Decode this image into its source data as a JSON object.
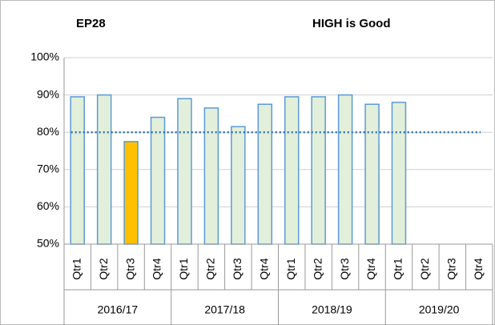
{
  "chart_data": {
    "type": "bar",
    "title": "EP28",
    "subtitle": "HIGH is Good",
    "categories": [
      "Qtr1",
      "Qtr2",
      "Qtr3",
      "Qtr4",
      "Qtr1",
      "Qtr2",
      "Qtr3",
      "Qtr4",
      "Qtr1",
      "Qtr2",
      "Qtr3",
      "Qtr4",
      "Qtr1",
      "Qtr2",
      "Qtr3",
      "Qtr4"
    ],
    "groups": [
      "2016/17",
      "2017/18",
      "2018/19",
      "2019/20"
    ],
    "values": [
      89.5,
      90,
      77.5,
      84,
      89,
      86.5,
      81.5,
      87.5,
      89.5,
      89.5,
      90,
      87.5,
      88,
      null,
      null,
      null
    ],
    "colors": [
      "#e2efda",
      "#e2efda",
      "#ffc000",
      "#e2efda",
      "#e2efda",
      "#e2efda",
      "#e2efda",
      "#e2efda",
      "#e2efda",
      "#e2efda",
      "#e2efda",
      "#e2efda",
      "#e2efda",
      "#e2efda",
      "#e2efda",
      "#e2efda"
    ],
    "edge_color": "#5b9bd5",
    "target": 80,
    "target_color": "#2e75b6",
    "ylim": [
      50,
      100
    ],
    "yticks": [
      {
        "value": 50,
        "label": "50%"
      },
      {
        "value": 60,
        "label": "60%"
      },
      {
        "value": 70,
        "label": "70%"
      },
      {
        "value": 80,
        "label": "80%"
      },
      {
        "value": 90,
        "label": "90%"
      },
      {
        "value": 100,
        "label": "100%"
      }
    ],
    "grid": true
  }
}
